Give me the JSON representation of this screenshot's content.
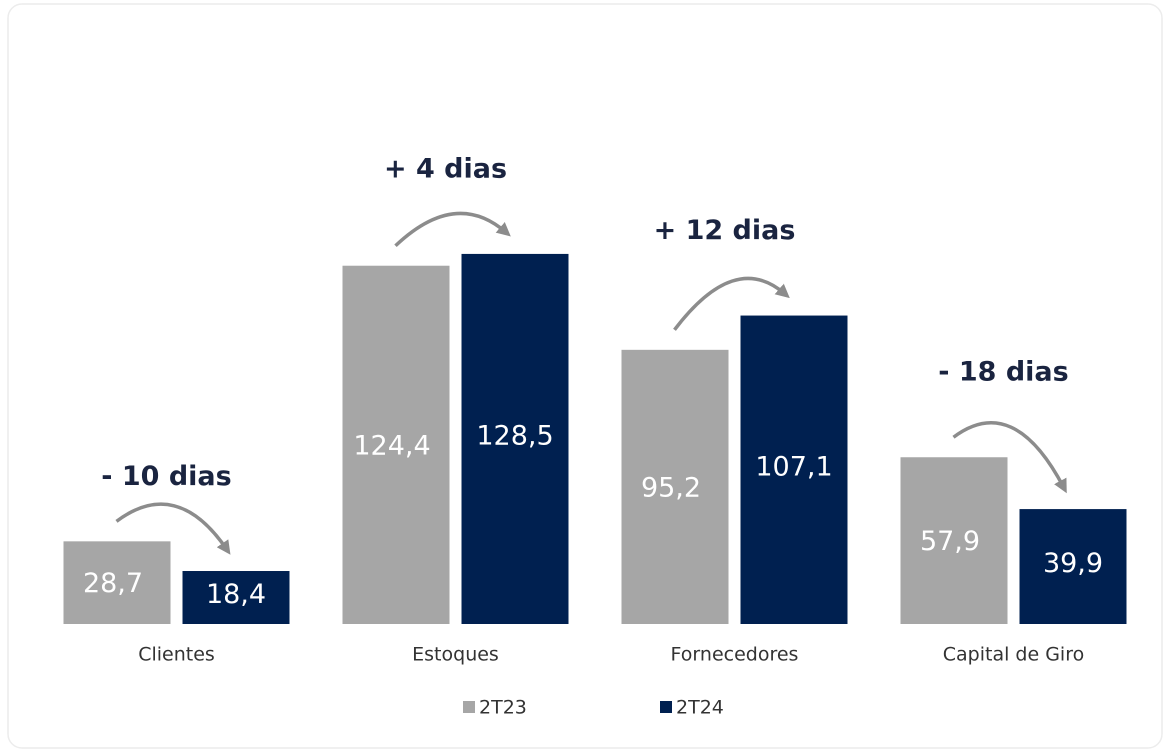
{
  "chart_data": {
    "type": "bar",
    "categories": [
      "Clientes",
      "Estoques",
      "Fornecedores",
      "Capital de Giro"
    ],
    "series": [
      {
        "name": "2T23",
        "color": "#a6a6a6",
        "values": [
          28.7,
          124.4,
          95.2,
          57.9
        ],
        "value_labels": [
          "28,7",
          "124,4",
          "95,2",
          "57,9"
        ]
      },
      {
        "name": "2T24",
        "color": "#002050",
        "values": [
          18.4,
          128.5,
          107.1,
          39.9
        ],
        "value_labels": [
          "18,4",
          "128,5",
          "107,1",
          "39,9"
        ]
      }
    ],
    "annotations": [
      "- 10 dias",
      "+ 4 dias",
      "+ 12 dias",
      "- 18 dias"
    ],
    "ylim": [
      0,
      200
    ],
    "legend": "bottom"
  }
}
